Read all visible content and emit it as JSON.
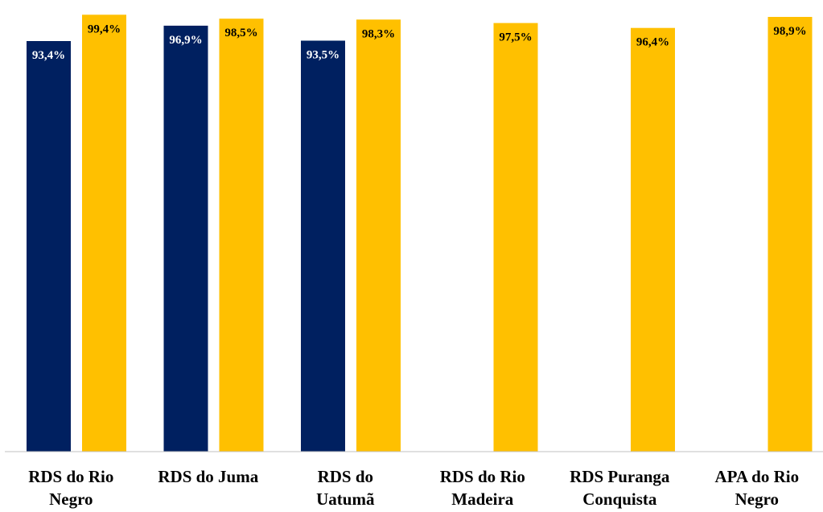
{
  "chart_data": {
    "type": "bar",
    "categories": [
      [
        "RDS do Rio",
        "Negro"
      ],
      [
        "RDS do Juma"
      ],
      [
        "RDS do",
        "Uatumã"
      ],
      [
        "RDS do Rio",
        "Madeira"
      ],
      [
        "RDS Puranga",
        "Conquista"
      ],
      [
        "APA do Rio",
        "Negro"
      ]
    ],
    "series": [
      {
        "color": "#002060",
        "label_color": "#ffffff",
        "values": [
          93.4,
          96.9,
          93.5,
          null,
          null,
          null
        ],
        "labels": [
          "93,4%",
          "96,9%",
          "93,5%",
          null,
          null,
          null
        ]
      },
      {
        "color": "#FFC000",
        "label_color": "#000000",
        "values": [
          99.4,
          98.5,
          98.3,
          97.5,
          96.4,
          98.9
        ],
        "labels": [
          "99,4%",
          "98,5%",
          "98,3%",
          "97,5%",
          "96,4%",
          "98,9%"
        ]
      }
    ],
    "ylim": [
      0,
      100
    ],
    "axis_color": "#c0c0c0",
    "grid": false,
    "legend": "none"
  }
}
